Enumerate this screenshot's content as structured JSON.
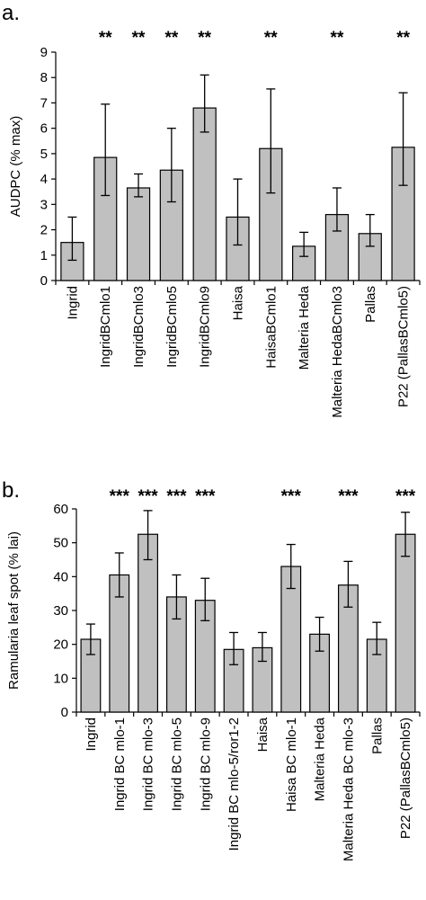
{
  "chart_data": [
    {
      "type": "bar",
      "panel_label": "a.",
      "ylabel": "AUDPC (% max)",
      "ylim": [
        0,
        9
      ],
      "yticks": [
        0,
        1,
        2,
        3,
        4,
        5,
        6,
        7,
        8,
        9
      ],
      "categories": [
        "Ingrid",
        "IngridBCmlo1",
        "IngridBCmlo3",
        "IngridBCmlo5",
        "IngridBCmlo9",
        "Haisa",
        "HaisaBCmlo1",
        "Malteria Heda",
        "Malteria HedaBCmlo3",
        "Pallas",
        "P22 (PallasBCmlo5)"
      ],
      "values": [
        1.5,
        4.85,
        3.65,
        4.35,
        6.8,
        2.5,
        5.2,
        1.35,
        2.6,
        1.85,
        5.25
      ],
      "error_low": [
        0.8,
        3.35,
        3.3,
        3.1,
        5.85,
        1.4,
        3.45,
        0.95,
        1.95,
        1.35,
        3.75
      ],
      "error_high": [
        2.5,
        6.95,
        4.2,
        6.0,
        8.1,
        4.0,
        7.55,
        1.9,
        3.65,
        2.6,
        7.4
      ],
      "significance": [
        "",
        "**",
        "**",
        "**",
        "**",
        "",
        "**",
        "",
        "**",
        "",
        "**"
      ],
      "bar_color": "#c0c0c0",
      "grid": false,
      "legend": "none"
    },
    {
      "type": "bar",
      "panel_label": "b.",
      "ylabel": "Ramularia leaf spot (% lai)",
      "ylim": [
        0,
        60
      ],
      "yticks": [
        0,
        10,
        20,
        30,
        40,
        50,
        60
      ],
      "categories": [
        "Ingrid",
        "Ingrid BC mlo-1",
        "Ingrid BC mlo-3",
        "Ingrid BC mlo-5",
        "Ingrid BC mlo-9",
        "Ingrid BC mlo-5/ror1-2",
        "Haisa",
        "Haisa BC mlo-1",
        "Malteria Heda",
        "Malteria Heda BC mlo-3",
        "Pallas",
        "P22 (PallasBCmlo5)"
      ],
      "values": [
        21.5,
        40.5,
        52.5,
        34.0,
        33.0,
        18.5,
        19.0,
        43.0,
        23.0,
        37.5,
        21.5,
        52.5
      ],
      "error_low": [
        17.0,
        34.0,
        45.0,
        27.5,
        27.0,
        14.0,
        15.0,
        36.5,
        18.0,
        31.0,
        17.0,
        46.0
      ],
      "error_high": [
        26.0,
        47.0,
        59.5,
        40.5,
        39.5,
        23.5,
        23.5,
        49.5,
        28.0,
        44.5,
        26.5,
        59.0
      ],
      "significance": [
        "",
        "***",
        "***",
        "***",
        "***",
        "",
        "",
        "***",
        "",
        "***",
        "",
        "***"
      ],
      "bar_color": "#c0c0c0",
      "grid": false,
      "legend": "none"
    }
  ]
}
